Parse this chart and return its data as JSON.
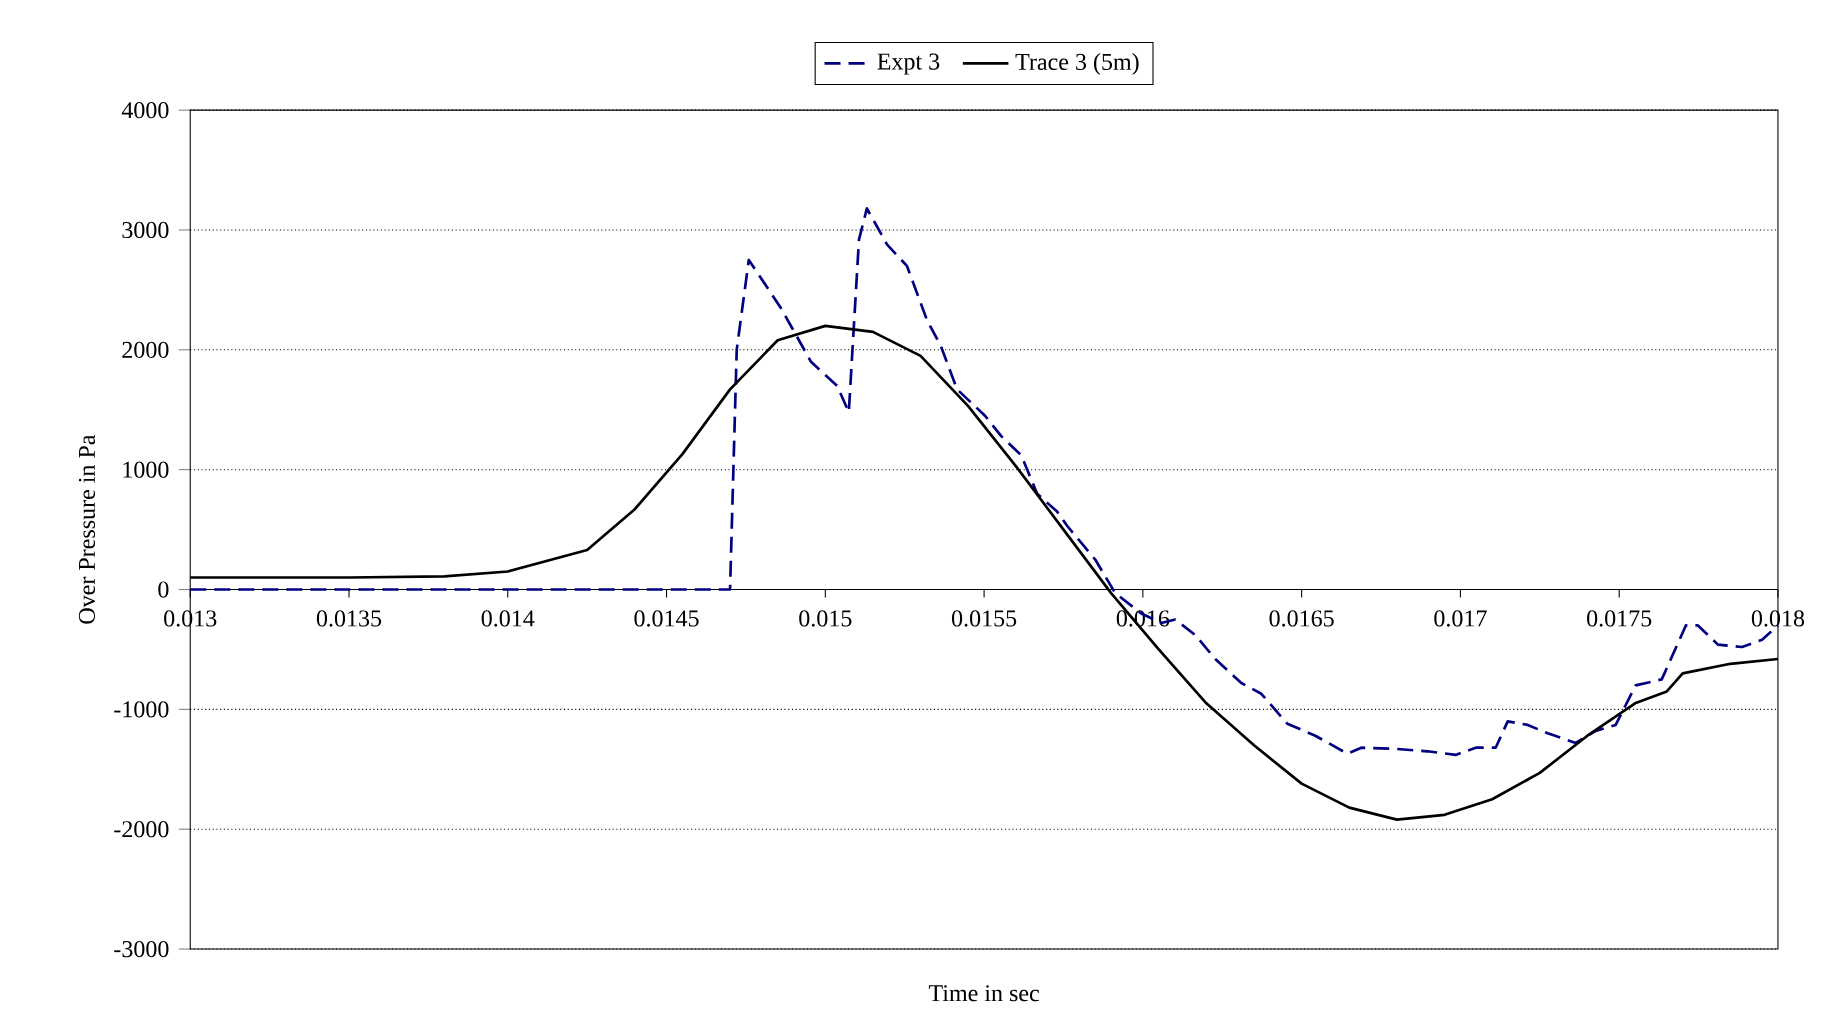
{
  "chart_data": {
    "type": "line",
    "xlabel": "Time in sec",
    "ylabel": "Over Pressure in Pa",
    "xlim": [
      0.013,
      0.018
    ],
    "ylim": [
      -3000,
      4000
    ],
    "xticks": [
      0.013,
      0.0135,
      0.014,
      0.0145,
      0.015,
      0.0155,
      0.016,
      0.0165,
      0.017,
      0.0175,
      0.018
    ],
    "yticks": [
      -3000,
      -2000,
      -1000,
      0,
      1000,
      2000,
      3000,
      4000
    ],
    "grid": "y",
    "legend": "top",
    "marker": "none",
    "series": [
      {
        "name": "Expt 3",
        "color": "#000080",
        "line_style": "dashed",
        "x": [
          0.013,
          0.0147,
          0.014721,
          0.014759,
          0.01486,
          0.014955,
          0.015037,
          0.015074,
          0.015106,
          0.015131,
          0.015194,
          0.015257,
          0.01532,
          0.015364,
          0.015415,
          0.015503,
          0.015554,
          0.015617,
          0.015667,
          0.01573,
          0.015762,
          0.01585,
          0.015913,
          0.015995,
          0.016058,
          0.016102,
          0.016165,
          0.016228,
          0.01631,
          0.016373,
          0.016455,
          0.016543,
          0.016644,
          0.016688,
          0.016795,
          0.016897,
          0.016985,
          0.017048,
          0.017111,
          0.017149,
          0.017212,
          0.017275,
          0.017363,
          0.017426,
          0.017489,
          0.017552,
          0.017634,
          0.01771,
          0.017748,
          0.017811,
          0.017887,
          0.01795,
          0.018
        ],
        "values": [
          0,
          0,
          2000,
          2750,
          2350,
          1900,
          1700,
          1480,
          2920,
          3180,
          2880,
          2700,
          2250,
          2030,
          1670,
          1450,
          1280,
          1120,
          800,
          650,
          530,
          250,
          -30,
          -200,
          -280,
          -250,
          -380,
          -580,
          -780,
          -870,
          -1120,
          -1220,
          -1370,
          -1320,
          -1330,
          -1350,
          -1380,
          -1320,
          -1320,
          -1100,
          -1130,
          -1200,
          -1280,
          -1180,
          -1130,
          -800,
          -750,
          -300,
          -300,
          -460,
          -480,
          -420,
          -300
        ]
      },
      {
        "name": "Trace 3 (5m)",
        "color": "#000000",
        "line_style": "solid",
        "x": [
          0.013,
          0.0135,
          0.0138,
          0.014,
          0.01425,
          0.0144,
          0.01455,
          0.0147,
          0.01485,
          0.015,
          0.01515,
          0.0153,
          0.01545,
          0.0156,
          0.01575,
          0.0159,
          0.01605,
          0.0162,
          0.01635,
          0.0165,
          0.01665,
          0.0168,
          0.01695,
          0.0171,
          0.01725,
          0.0174,
          0.01755,
          0.01765,
          0.0177,
          0.01785,
          0.018
        ],
        "values": [
          100,
          100,
          110,
          150,
          330,
          670,
          1130,
          1670,
          2080,
          2200,
          2150,
          1950,
          1530,
          1030,
          500,
          -30,
          -500,
          -950,
          -1300,
          -1620,
          -1820,
          -1920,
          -1880,
          -1750,
          -1530,
          -1220,
          -950,
          -850,
          -700,
          -620,
          -580
        ]
      }
    ]
  }
}
